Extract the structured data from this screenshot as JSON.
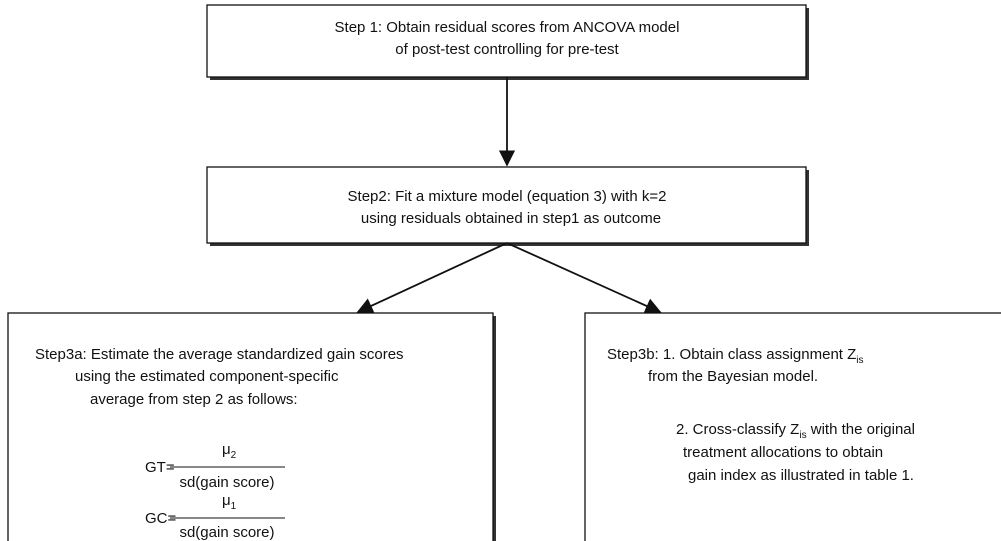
{
  "step1": {
    "lines": [
      "Step 1: Obtain residual scores from ANCOVA model",
      "of post-test controlling for pre-test"
    ]
  },
  "step2": {
    "lines": [
      "Step2: Fit a mixture model (equation 3) with k=2",
      "using residuals obtained in step1 as outcome"
    ]
  },
  "step3a": {
    "lines": [
      "Step3a: Estimate the average standardized gain scores",
      "using the  estimated  component-specific",
      "average  from step 2 as follows:"
    ],
    "formulas": [
      {
        "lhs": "GT=",
        "symbol": "μ",
        "sub": "2",
        "denominator": "sd(gain score)"
      },
      {
        "lhs": "GC=",
        "symbol": "μ",
        "sub": "1",
        "denominator": "sd(gain score)"
      }
    ]
  },
  "step3b": {
    "line1": {
      "text": "Step3b: 1. Obtain class assignment Z",
      "sub": "is"
    },
    "line2": "from the Bayesian model.",
    "line3": {
      "text": "2. Cross-classify Z",
      "sub": "is",
      "after": " with the original"
    },
    "line4": "treatment allocations to obtain",
    "line5": "gain index as illustrated in table 1."
  }
}
